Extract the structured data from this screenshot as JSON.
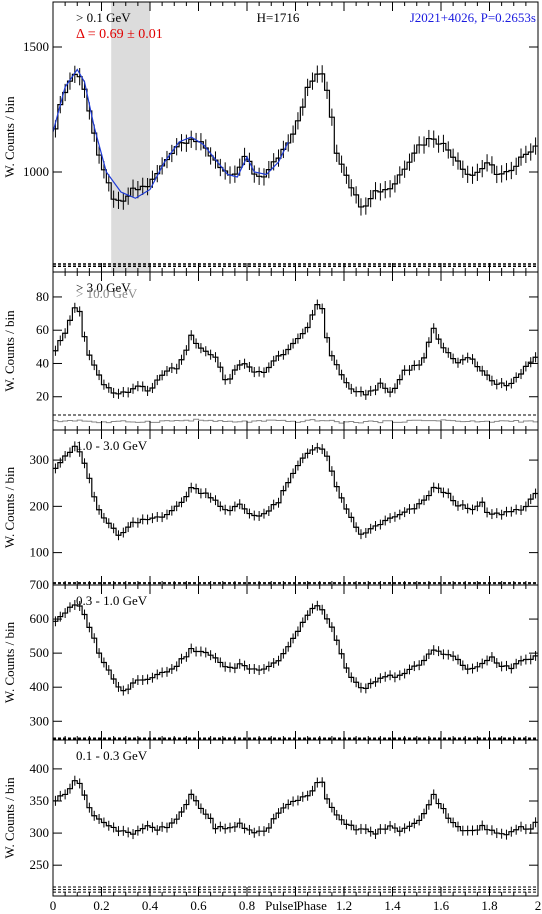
{
  "figure": {
    "xlabel": "Pulse Phase",
    "xlim": [
      0,
      2
    ],
    "x_ticks": [
      "0",
      "0.2",
      "0.4",
      "0.6",
      "0.8",
      "1",
      "1.2",
      "1.4",
      "1.6",
      "1.8",
      "2"
    ],
    "colors": {
      "axis": "#000000",
      "fit": "#1f3bd6",
      "shade": "#dcdcdc",
      "red": "#e00000",
      "blue": "#1a1adf",
      "gray": "#888888"
    }
  },
  "chart_data": [
    {
      "type": "line",
      "panel": "> 0.1 GeV",
      "ylabel": "W. Counts / bin",
      "ylim": [
        600,
        1680
      ],
      "y_ticks": [
        1000,
        1500
      ],
      "labels": {
        "band": "> 0.1 GeV",
        "delta": "Δ = 0.69 ± 0.01",
        "htest": "H=1716",
        "pulsar": "J2021+4026, P=0.2653s"
      },
      "shaded_region": [
        0.24,
        0.4
      ],
      "background_levels": [
        622,
        628,
        633
      ],
      "anchors": [
        [
          0,
          1150
        ],
        [
          0.05,
          1330
        ],
        [
          0.1,
          1410
        ],
        [
          0.14,
          1300
        ],
        [
          0.2,
          1020
        ],
        [
          0.25,
          900
        ],
        [
          0.28,
          860
        ],
        [
          0.32,
          920
        ],
        [
          0.4,
          950
        ],
        [
          0.45,
          1020
        ],
        [
          0.5,
          1100
        ],
        [
          0.57,
          1140
        ],
        [
          0.62,
          1100
        ],
        [
          0.67,
          1050
        ],
        [
          0.72,
          990
        ],
        [
          0.74,
          960
        ],
        [
          0.78,
          1040
        ],
        [
          0.8,
          1070
        ],
        [
          0.83,
          980
        ],
        [
          0.88,
          990
        ],
        [
          0.95,
          1090
        ],
        [
          1.0,
          1180
        ],
        [
          1.05,
          1330
        ],
        [
          1.1,
          1410
        ],
        [
          1.14,
          1300
        ],
        [
          1.17,
          1080
        ],
        [
          1.2,
          1020
        ],
        [
          1.25,
          900
        ],
        [
          1.28,
          860
        ],
        [
          1.32,
          920
        ],
        [
          1.4,
          940
        ],
        [
          1.45,
          1020
        ],
        [
          1.5,
          1100
        ],
        [
          1.57,
          1140
        ],
        [
          1.62,
          1100
        ],
        [
          1.67,
          1050
        ],
        [
          1.72,
          980
        ],
        [
          1.76,
          1010
        ],
        [
          1.8,
          1030
        ],
        [
          1.84,
          990
        ],
        [
          1.9,
          1000
        ],
        [
          1.95,
          1080
        ],
        [
          2.0,
          1110
        ]
      ],
      "fit_curve": [
        [
          0,
          1160
        ],
        [
          0.05,
          1340
        ],
        [
          0.1,
          1410
        ],
        [
          0.13,
          1360
        ],
        [
          0.17,
          1180
        ],
        [
          0.22,
          1000
        ],
        [
          0.28,
          920
        ],
        [
          0.34,
          895
        ],
        [
          0.4,
          930
        ],
        [
          0.46,
          1040
        ],
        [
          0.52,
          1120
        ],
        [
          0.57,
          1140
        ],
        [
          0.62,
          1110
        ],
        [
          0.67,
          1050
        ],
        [
          0.72,
          990
        ],
        [
          0.76,
          980
        ],
        [
          0.8,
          1060
        ],
        [
          0.83,
          1000
        ],
        [
          0.88,
          990
        ],
        [
          0.93,
          1040
        ],
        [
          0.97,
          1120
        ]
      ]
    },
    {
      "type": "line",
      "panel": "> 3.0 GeV",
      "ylabel": "W. Counts / bin",
      "ylim": [
        0,
        95
      ],
      "y_ticks": [
        20,
        40,
        60,
        80
      ],
      "labels": {
        "band": "> 3.0 GeV",
        "band2": "> 10.0 GeV"
      },
      "background_levels": [
        9
      ],
      "anchors": [
        [
          0,
          46
        ],
        [
          0.05,
          58
        ],
        [
          0.1,
          78
        ],
        [
          0.14,
          48
        ],
        [
          0.2,
          30
        ],
        [
          0.25,
          22
        ],
        [
          0.3,
          22
        ],
        [
          0.35,
          27
        ],
        [
          0.4,
          22
        ],
        [
          0.45,
          34
        ],
        [
          0.52,
          38
        ],
        [
          0.57,
          56
        ],
        [
          0.62,
          48
        ],
        [
          0.67,
          44
        ],
        [
          0.72,
          28
        ],
        [
          0.78,
          42
        ],
        [
          0.83,
          34
        ],
        [
          0.88,
          36
        ],
        [
          0.93,
          44
        ],
        [
          1.0,
          52
        ],
        [
          1.05,
          62
        ],
        [
          1.1,
          80
        ],
        [
          1.14,
          48
        ],
        [
          1.2,
          30
        ],
        [
          1.25,
          22
        ],
        [
          1.3,
          22
        ],
        [
          1.35,
          27
        ],
        [
          1.4,
          22
        ],
        [
          1.45,
          36
        ],
        [
          1.52,
          40
        ],
        [
          1.57,
          60
        ],
        [
          1.62,
          48
        ],
        [
          1.67,
          40
        ],
        [
          1.72,
          44
        ],
        [
          1.78,
          34
        ],
        [
          1.83,
          28
        ],
        [
          1.88,
          26
        ],
        [
          1.93,
          34
        ],
        [
          2.0,
          46
        ]
      ],
      "secondary_anchors": [
        [
          0,
          5
        ],
        [
          0.1,
          6
        ],
        [
          0.2,
          4.5
        ],
        [
          0.3,
          5
        ],
        [
          0.4,
          5
        ],
        [
          0.5,
          5.5
        ],
        [
          0.6,
          6
        ],
        [
          0.7,
          5
        ],
        [
          0.8,
          5
        ],
        [
          0.9,
          5.5
        ],
        [
          1.0,
          5
        ],
        [
          1.1,
          6
        ],
        [
          1.2,
          4.5
        ],
        [
          1.3,
          5
        ],
        [
          1.4,
          5
        ],
        [
          1.5,
          5.5
        ],
        [
          1.6,
          6
        ],
        [
          1.7,
          5
        ],
        [
          1.8,
          5
        ],
        [
          1.9,
          5.5
        ],
        [
          2.0,
          5
        ]
      ]
    },
    {
      "type": "line",
      "panel": "1.0 - 3.0 GeV",
      "ylabel": "W. Counts / bin",
      "ylim": [
        30,
        365
      ],
      "y_ticks": [
        100,
        200,
        300
      ],
      "labels": {
        "band": "1.0 - 3.0 GeV"
      },
      "background_levels": [
        33,
        35
      ],
      "anchors": [
        [
          0,
          280
        ],
        [
          0.05,
          310
        ],
        [
          0.1,
          330
        ],
        [
          0.14,
          280
        ],
        [
          0.18,
          200
        ],
        [
          0.23,
          160
        ],
        [
          0.28,
          135
        ],
        [
          0.32,
          160
        ],
        [
          0.38,
          170
        ],
        [
          0.45,
          180
        ],
        [
          0.52,
          200
        ],
        [
          0.57,
          240
        ],
        [
          0.62,
          230
        ],
        [
          0.66,
          220
        ],
        [
          0.72,
          185
        ],
        [
          0.77,
          205
        ],
        [
          0.82,
          180
        ],
        [
          0.88,
          185
        ],
        [
          0.93,
          210
        ],
        [
          0.98,
          260
        ],
        [
          1.03,
          305
        ],
        [
          1.08,
          330
        ],
        [
          1.12,
          320
        ],
        [
          1.16,
          260
        ],
        [
          1.2,
          200
        ],
        [
          1.25,
          155
        ],
        [
          1.28,
          135
        ],
        [
          1.32,
          155
        ],
        [
          1.38,
          170
        ],
        [
          1.45,
          185
        ],
        [
          1.52,
          205
        ],
        [
          1.57,
          240
        ],
        [
          1.62,
          230
        ],
        [
          1.67,
          205
        ],
        [
          1.72,
          190
        ],
        [
          1.77,
          205
        ],
        [
          1.8,
          180
        ],
        [
          1.85,
          185
        ],
        [
          1.9,
          190
        ],
        [
          1.95,
          200
        ],
        [
          2.0,
          230
        ]
      ]
    },
    {
      "type": "line",
      "panel": "0.3 - 1.0 GeV",
      "ylabel": "W. Counts / bin",
      "ylim": [
        245,
        700
      ],
      "y_ticks": [
        300,
        400,
        500,
        600,
        700
      ],
      "labels": {
        "band": "0.3 - 1.0 GeV"
      },
      "background_levels": [
        248,
        251
      ],
      "anchors": [
        [
          0,
          590
        ],
        [
          0.05,
          620
        ],
        [
          0.1,
          645
        ],
        [
          0.14,
          600
        ],
        [
          0.18,
          520
        ],
        [
          0.22,
          460
        ],
        [
          0.26,
          410
        ],
        [
          0.3,
          390
        ],
        [
          0.34,
          420
        ],
        [
          0.4,
          430
        ],
        [
          0.45,
          440
        ],
        [
          0.52,
          470
        ],
        [
          0.57,
          510
        ],
        [
          0.62,
          500
        ],
        [
          0.67,
          490
        ],
        [
          0.72,
          450
        ],
        [
          0.78,
          470
        ],
        [
          0.82,
          450
        ],
        [
          0.88,
          460
        ],
        [
          0.93,
          480
        ],
        [
          0.98,
          530
        ],
        [
          1.03,
          590
        ],
        [
          1.08,
          640
        ],
        [
          1.12,
          620
        ],
        [
          1.16,
          560
        ],
        [
          1.2,
          470
        ],
        [
          1.25,
          410
        ],
        [
          1.28,
          385
        ],
        [
          1.32,
          415
        ],
        [
          1.38,
          430
        ],
        [
          1.45,
          440
        ],
        [
          1.52,
          470
        ],
        [
          1.57,
          510
        ],
        [
          1.62,
          500
        ],
        [
          1.67,
          480
        ],
        [
          1.72,
          445
        ],
        [
          1.77,
          470
        ],
        [
          1.8,
          490
        ],
        [
          1.85,
          460
        ],
        [
          1.9,
          460
        ],
        [
          1.95,
          480
        ],
        [
          2.0,
          495
        ]
      ]
    },
    {
      "type": "line",
      "panel": "0.1 - 0.3 GeV",
      "ylabel": "W. Counts / bin",
      "ylim": [
        202,
        445
      ],
      "y_ticks": [
        250,
        300,
        350,
        400
      ],
      "labels": {
        "band": "0.1 - 0.3 GeV"
      },
      "background_levels": [
        208,
        212,
        216
      ],
      "anchors": [
        [
          0,
          350
        ],
        [
          0.05,
          360
        ],
        [
          0.1,
          390
        ],
        [
          0.14,
          345
        ],
        [
          0.18,
          325
        ],
        [
          0.23,
          310
        ],
        [
          0.28,
          305
        ],
        [
          0.33,
          300
        ],
        [
          0.38,
          310
        ],
        [
          0.43,
          305
        ],
        [
          0.48,
          310
        ],
        [
          0.53,
          330
        ],
        [
          0.57,
          360
        ],
        [
          0.62,
          335
        ],
        [
          0.67,
          310
        ],
        [
          0.72,
          305
        ],
        [
          0.77,
          315
        ],
        [
          0.82,
          300
        ],
        [
          0.88,
          305
        ],
        [
          0.93,
          330
        ],
        [
          0.98,
          350
        ],
        [
          1.03,
          355
        ],
        [
          1.08,
          370
        ],
        [
          1.1,
          390
        ],
        [
          1.14,
          345
        ],
        [
          1.18,
          320
        ],
        [
          1.23,
          310
        ],
        [
          1.28,
          305
        ],
        [
          1.33,
          300
        ],
        [
          1.38,
          310
        ],
        [
          1.43,
          305
        ],
        [
          1.48,
          310
        ],
        [
          1.52,
          325
        ],
        [
          1.57,
          360
        ],
        [
          1.62,
          330
        ],
        [
          1.67,
          310
        ],
        [
          1.72,
          300
        ],
        [
          1.77,
          310
        ],
        [
          1.82,
          300
        ],
        [
          1.87,
          300
        ],
        [
          1.92,
          310
        ],
        [
          1.96,
          305
        ],
        [
          2.0,
          320
        ]
      ]
    }
  ]
}
